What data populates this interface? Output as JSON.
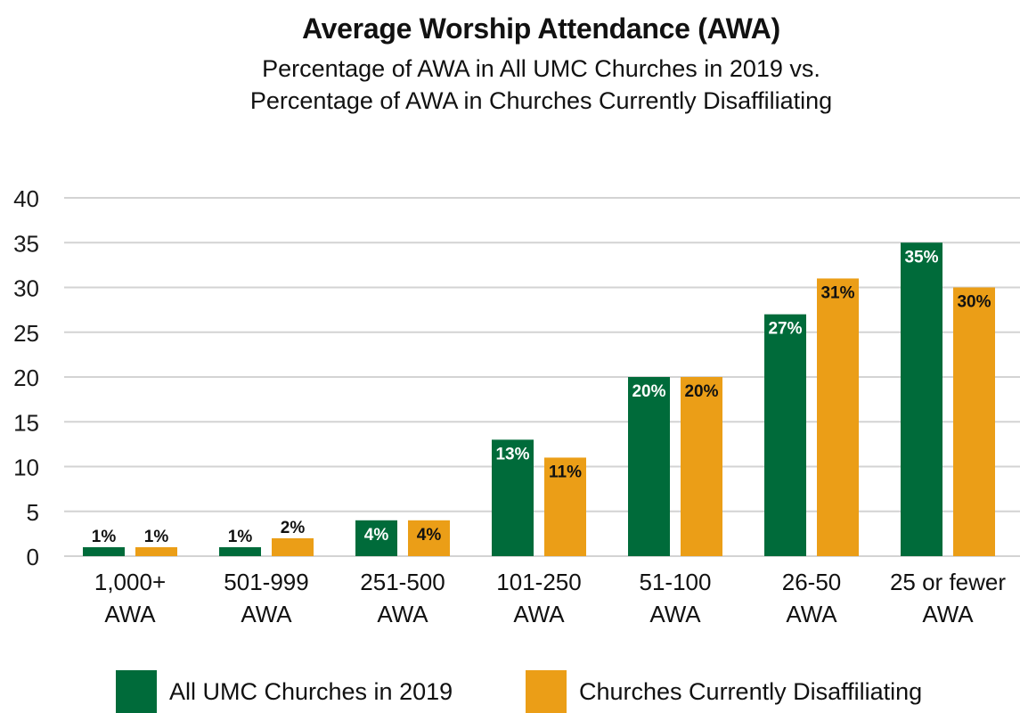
{
  "chart_data": {
    "type": "bar",
    "title": "Average Worship Attendance (AWA)",
    "subtitle": [
      "Percentage of AWA in All UMC Churches in 2019 vs.",
      "Percentage of AWA in Churches Currently Disaffiliating"
    ],
    "categories": [
      [
        "1,000+",
        "AWA"
      ],
      [
        "501-999",
        "AWA"
      ],
      [
        "251-500",
        "AWA"
      ],
      [
        "101-250",
        "AWA"
      ],
      [
        "51-100",
        "AWA"
      ],
      [
        "26-50",
        "AWA"
      ],
      [
        "25 or fewer",
        "AWA"
      ]
    ],
    "series": [
      {
        "name": "All UMC Churches in 2019",
        "color": "#006b3a",
        "values": [
          1,
          1,
          4,
          13,
          20,
          27,
          35
        ],
        "labels": [
          "1%",
          "1%",
          "4%",
          "13%",
          "20%",
          "27%",
          "35%"
        ]
      },
      {
        "name": "Churches Currently Disaffiliating",
        "color": "#eb9e17",
        "values": [
          1,
          2,
          4,
          11,
          20,
          31,
          30
        ],
        "labels": [
          "1%",
          "2%",
          "4%",
          "11%",
          "20%",
          "31%",
          "30%"
        ]
      }
    ],
    "yticks": [
      "0",
      "5",
      "10",
      "15",
      "20",
      "25",
      "30",
      "35",
      "40"
    ],
    "ylim": [
      0,
      40
    ],
    "grid": true,
    "legend_position": "bottom"
  }
}
